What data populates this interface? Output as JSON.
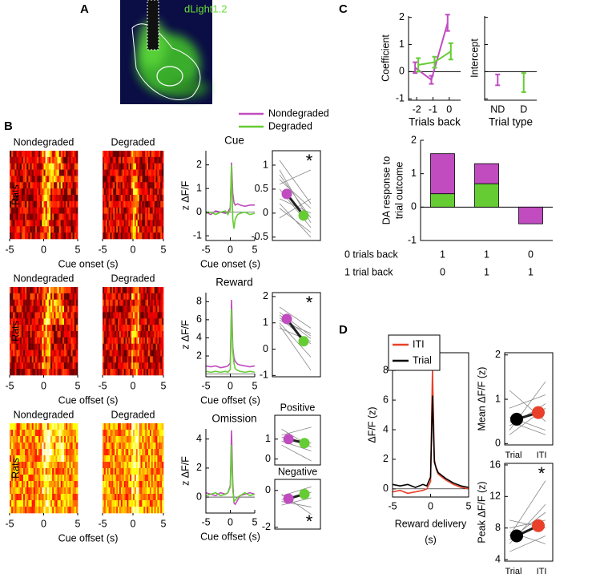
{
  "panel_labels": [
    "A",
    "B",
    "C",
    "D"
  ],
  "image_label": "dLight1.2",
  "chart_data": [
    {
      "type": "heatmap",
      "titles": [
        "Nondegraded",
        "Degraded"
      ],
      "ylabel": "Rats",
      "xlabel": "Cue onset (s)",
      "xlim": [
        -5,
        5
      ],
      "xticks": [
        -5,
        0,
        5
      ],
      "colormap": "hot"
    },
    {
      "type": "heatmap",
      "titles": [
        "Nondegraded",
        "Degraded"
      ],
      "ylabel": "Rats",
      "xlabel": "Cue offset (s)",
      "xlim": [
        -5,
        5
      ],
      "xticks": [
        -5,
        0,
        5
      ],
      "colormap": "hot"
    },
    {
      "type": "heatmap",
      "titles": [
        "Nondegraded",
        "Degraded"
      ],
      "ylabel": "Rats",
      "xlabel": "Cue offset (s)",
      "xlim": [
        -5,
        5
      ],
      "xticks": [
        -5,
        0,
        5
      ],
      "colormap": "hot-dense"
    },
    {
      "type": "line",
      "title": "Cue",
      "xlabel": "Cue onset (s)",
      "ylabel": "z ΔF/F",
      "x": [
        -5,
        -4,
        -3,
        -2,
        -1,
        -0.5,
        0,
        0.25,
        0.5,
        0.75,
        1,
        1.5,
        2,
        3,
        4,
        5
      ],
      "series": [
        {
          "name": "Nondegraded",
          "color": "#c04cc0",
          "values": [
            0,
            -0.1,
            0.05,
            0,
            -0.05,
            0,
            0.2,
            2.1,
            0.8,
            0.4,
            0.3,
            0.35,
            0.3,
            0.25,
            0.3,
            0.3
          ]
        },
        {
          "name": "Degraded",
          "color": "#66cc33",
          "values": [
            -0.05,
            0,
            -0.1,
            0,
            0.05,
            -0.1,
            0.1,
            2.0,
            -0.3,
            -0.7,
            -0.3,
            -0.1,
            -0.05,
            0,
            -0.1,
            -0.05
          ]
        }
      ],
      "xlim": [
        -5,
        5
      ],
      "ylim": [
        -1.2,
        2.6
      ],
      "xticks": [
        -5,
        0,
        5
      ],
      "yticks": [
        -1,
        0,
        1,
        2
      ]
    },
    {
      "type": "line",
      "title": "Reward",
      "xlabel": "Cue offset (s)",
      "ylabel": "z ΔF/F",
      "x": [
        -5,
        -4,
        -3,
        -2,
        -1,
        -0.5,
        0,
        0.25,
        0.5,
        0.75,
        1,
        1.5,
        2,
        3,
        4,
        5
      ],
      "series": [
        {
          "color": "#c04cc0",
          "values": [
            0.9,
            0.8,
            0.9,
            0.7,
            0.8,
            0.9,
            1.2,
            8.2,
            3.0,
            1.8,
            1.4,
            1.1,
            1.0,
            0.9,
            0.8,
            0.9
          ]
        },
        {
          "color": "#66cc33",
          "values": [
            0.3,
            0.2,
            0.3,
            0.2,
            0.3,
            0.2,
            0.5,
            7.2,
            2.5,
            1.2,
            0.6,
            0.4,
            0.3,
            0.2,
            0.3,
            0.2
          ]
        }
      ],
      "xlim": [
        -5,
        5
      ],
      "ylim": [
        -0.3,
        9
      ],
      "xticks": [
        -5,
        0,
        5
      ],
      "yticks": [
        2,
        4,
        6,
        8
      ]
    },
    {
      "type": "line",
      "title": "Omission",
      "xlabel": "Cue offset (s)",
      "ylabel": "z ΔF/F",
      "x": [
        -5,
        -4,
        -3,
        -2,
        -1,
        -0.5,
        0,
        0.25,
        0.5,
        0.75,
        1,
        1.5,
        2,
        3,
        4,
        5
      ],
      "series": [
        {
          "color": "#c04cc0",
          "values": [
            0.3,
            0.2,
            0.1,
            0.3,
            0.2,
            0.3,
            0.8,
            4.6,
            1.0,
            -0.4,
            -0.5,
            -0.2,
            0.1,
            0.2,
            0.3,
            0.2
          ]
        },
        {
          "color": "#66cc33",
          "values": [
            0.1,
            0.2,
            0.3,
            0.1,
            0.2,
            0.3,
            0.7,
            3.6,
            0.5,
            -0.3,
            -0.2,
            0,
            0.1,
            0.3,
            0.1,
            0.2
          ]
        }
      ],
      "xlim": [
        -5,
        5
      ],
      "ylim": [
        -1.1,
        4.7
      ],
      "xticks": [
        -5,
        0,
        5
      ],
      "yticks": [
        0,
        2,
        4
      ]
    },
    {
      "type": "paired",
      "values": [
        0.4,
        -0.05
      ],
      "colors": [
        "#c04cc0",
        "#66cc33"
      ],
      "pairs": [
        [
          1.1,
          0.2
        ],
        [
          0.9,
          -0.2
        ],
        [
          0.7,
          0.1
        ],
        [
          0.5,
          -0.3
        ],
        [
          0.3,
          0.0
        ],
        [
          0.1,
          -0.4
        ],
        [
          -0.1,
          0.3
        ],
        [
          0.6,
          0.9
        ],
        [
          0.8,
          -0.1
        ],
        [
          0.2,
          -0.5
        ]
      ],
      "annotation": "*",
      "ylim": [
        -0.57,
        1.3
      ],
      "yticks": [
        -0.5,
        0,
        0.5,
        1
      ]
    },
    {
      "type": "paired",
      "values": [
        1.15,
        0.3
      ],
      "colors": [
        "#c04cc0",
        "#66cc33"
      ],
      "pairs": [
        [
          1.6,
          0.8
        ],
        [
          1.4,
          0.5
        ],
        [
          1.2,
          0.2
        ],
        [
          1.0,
          -0.3
        ],
        [
          1.1,
          0.6
        ],
        [
          0.9,
          -0.8
        ],
        [
          1.3,
          0.4
        ],
        [
          0.8,
          0.3
        ]
      ],
      "annotation": "*",
      "ylim": [
        -1.05,
        2.15
      ],
      "yticks": [
        -1,
        0,
        1,
        2
      ]
    },
    {
      "type": "paired",
      "title": "Positive",
      "values": [
        1,
        0.8
      ],
      "colors": [
        "#c04cc0",
        "#66cc33"
      ],
      "pairs": [
        [
          1.5,
          0.6
        ],
        [
          1.2,
          1.6
        ],
        [
          0.9,
          0.4
        ],
        [
          0.7,
          -0.1
        ],
        [
          1.1,
          0.8
        ]
      ],
      "ylim": [
        -0.3,
        2.2
      ],
      "yticks": [
        0,
        1
      ]
    },
    {
      "type": "paired",
      "title": "Negative",
      "values": [
        -0.45,
        -0.2
      ],
      "colors": [
        "#c04cc0",
        "#66cc33"
      ],
      "pairs": [
        [
          -0.2,
          -1.3
        ],
        [
          -0.5,
          -0.1
        ],
        [
          -0.8,
          -0.4
        ],
        [
          -0.3,
          0.2
        ],
        [
          -0.6,
          -0.9
        ]
      ],
      "annotation": "*",
      "ylim": [
        -2.1,
        0.6
      ],
      "yticks": [
        -2,
        0
      ]
    },
    {
      "type": "errorbar",
      "xlabel": "Trials back",
      "ylabel": "Coefficient",
      "x": [
        -2,
        -1,
        0
      ],
      "series": [
        {
          "color": "#c04cc0",
          "values": [
            0.15,
            -0.3,
            1.8
          ],
          "errors": [
            0.2,
            0.15,
            0.3
          ]
        },
        {
          "color": "#66cc33",
          "values": [
            0.25,
            0.35,
            0.75
          ],
          "errors": [
            0.25,
            0.2,
            0.3
          ]
        }
      ],
      "xlim": [
        -2.5,
        0.7
      ],
      "ylim": [
        -1.05,
        2.05
      ],
      "xticks": [
        -2,
        -1,
        0
      ],
      "yticks": [
        -1,
        0,
        1,
        2
      ]
    },
    {
      "type": "errorbar-categorical",
      "xlabel": "Trial type",
      "ylabel": "Intercept",
      "categories": [
        "ND",
        "D"
      ],
      "values": [
        -0.3,
        -0.4
      ],
      "errors": [
        0.2,
        0.35
      ],
      "colors": [
        "#c04cc0",
        "#66cc33"
      ],
      "ylim": [
        -1.05,
        2.05
      ],
      "yticks": [
        -1,
        0,
        1,
        2
      ]
    },
    {
      "type": "stacked-bar",
      "ylabel": [
        "DA response to",
        "trial outcome"
      ],
      "series": [
        {
          "color": "#66cc33",
          "values": [
            0.4,
            0.7,
            null
          ]
        },
        {
          "color": "#c04cc0",
          "values": [
            1.2,
            0.6,
            -0.5
          ]
        }
      ],
      "table": [
        {
          "label": "0 trials back",
          "cells": [
            1,
            1,
            0
          ]
        },
        {
          "label": "1 trial back",
          "cells": [
            0,
            1,
            1
          ]
        }
      ],
      "ylim": [
        -1,
        2
      ],
      "yticks": [
        -1,
        0,
        1,
        2
      ]
    },
    {
      "type": "line",
      "xlabel": [
        "Reward delivery",
        "(s)"
      ],
      "ylabel": "ΔF/F (z)",
      "x": [
        -5,
        -4,
        -3,
        -2,
        -1,
        -0.5,
        0,
        0.25,
        0.5,
        0.75,
        1,
        1.5,
        2,
        3,
        4,
        5
      ],
      "series": [
        {
          "name": "ITI",
          "color": "#e8402a",
          "values": [
            -0.2,
            -0.1,
            -0.3,
            -0.2,
            -0.1,
            0,
            0.5,
            8.1,
            2.0,
            1.3,
            1.0,
            0.8,
            0.6,
            0.3,
            0.1,
            0
          ]
        },
        {
          "name": "Trial",
          "color": "#000000",
          "values": [
            0.3,
            0.2,
            0.3,
            0.1,
            0.3,
            0.2,
            0.8,
            6.3,
            1.8,
            1.4,
            1.1,
            0.9,
            0.7,
            0.4,
            0.2,
            0.1
          ]
        }
      ],
      "xlim": [
        -5,
        5
      ],
      "ylim": [
        -0.55,
        9.2
      ],
      "xticks": [
        -5,
        0,
        5
      ],
      "yticks": [
        0,
        2,
        4,
        6,
        8
      ]
    },
    {
      "type": "paired",
      "ylabel": "Mean ΔF/F (z)",
      "categories": [
        "Trial",
        "ITI"
      ],
      "values": [
        0.55,
        0.7
      ],
      "colors": [
        "#000000",
        "#e8402a"
      ],
      "pairs": [
        [
          0.3,
          1.4
        ],
        [
          0.5,
          0.2
        ],
        [
          0.8,
          1.1
        ],
        [
          0.4,
          0.9
        ],
        [
          1.2,
          0.5
        ],
        [
          0.6,
          0.3
        ],
        [
          0.2,
          0.8
        ]
      ],
      "ylim": [
        -0.03,
        2.05
      ],
      "yticks": [
        0,
        1,
        2
      ]
    },
    {
      "type": "paired",
      "ylabel": "Peak ΔF/F (z)",
      "categories": [
        "Trial",
        "ITI"
      ],
      "values": [
        7,
        8.3
      ],
      "colors": [
        "#000000",
        "#e8402a"
      ],
      "pairs": [
        [
          6,
          11
        ],
        [
          7,
          14
        ],
        [
          8,
          9
        ],
        [
          5,
          7
        ],
        [
          9,
          8
        ],
        [
          6.5,
          10
        ],
        [
          7.5,
          6
        ]
      ],
      "annotation": "*",
      "ylim": [
        3.8,
        16.2
      ],
      "yticks": [
        4,
        8,
        12,
        16
      ]
    }
  ]
}
